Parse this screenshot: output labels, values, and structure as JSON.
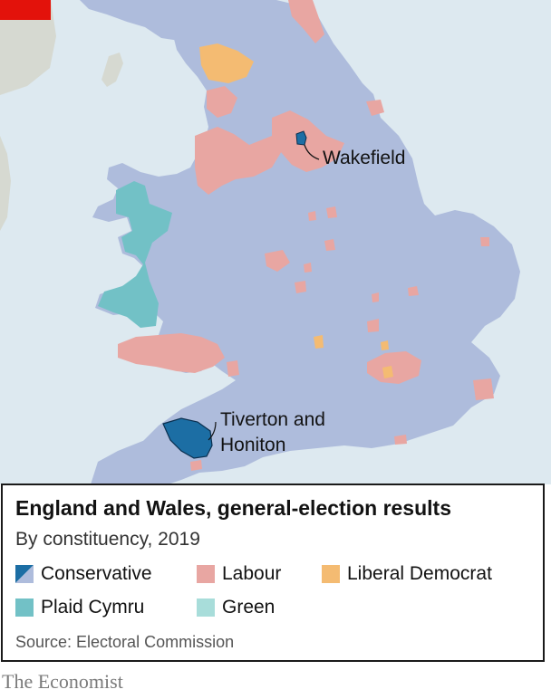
{
  "map": {
    "labels": {
      "wakefield": "Wakefield",
      "tiverton": "Tiverton and Honiton"
    }
  },
  "legend": {
    "title": "England and Wales, general-election results",
    "subtitle": "By constituency, 2019",
    "items": [
      {
        "label": "Conservative",
        "color": "#aebcdc",
        "highlight": "#1c6ea4"
      },
      {
        "label": "Labour",
        "color": "#e8a6a2"
      },
      {
        "label": "Liberal Democrat",
        "color": "#f4bb72"
      },
      {
        "label": "Plaid Cymru",
        "color": "#72c1c6"
      },
      {
        "label": "Green",
        "color": "#a8ddda"
      }
    ],
    "source": "Source: Electoral Commission"
  },
  "footer": {
    "logo": "The Economist"
  },
  "colors": {
    "sea": "#dde9f0",
    "neighbouring_land": "#d6d9d1",
    "brand_red": "#e3120b"
  }
}
